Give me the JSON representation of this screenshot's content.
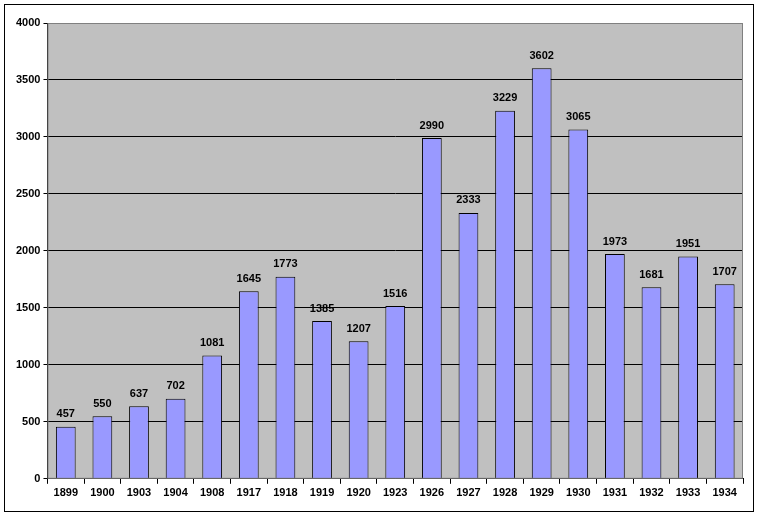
{
  "chart_data": {
    "type": "bar",
    "categories": [
      "1899",
      "1900",
      "1903",
      "1904",
      "1908",
      "1917",
      "1918",
      "1919",
      "1920",
      "1923",
      "1926",
      "1927",
      "1928",
      "1929",
      "1930",
      "1931",
      "1932",
      "1933",
      "1934"
    ],
    "values": [
      457,
      550,
      637,
      702,
      1081,
      1645,
      1773,
      1385,
      1207,
      1516,
      2990,
      2333,
      3229,
      3602,
      3065,
      1973,
      1681,
      1951,
      1707
    ],
    "color": "#9999ff",
    "ylim": [
      0,
      4000
    ],
    "yticks": [
      0,
      500,
      1000,
      1500,
      2000,
      2500,
      3000,
      3500,
      4000
    ],
    "grid": true,
    "data_labels": true
  }
}
